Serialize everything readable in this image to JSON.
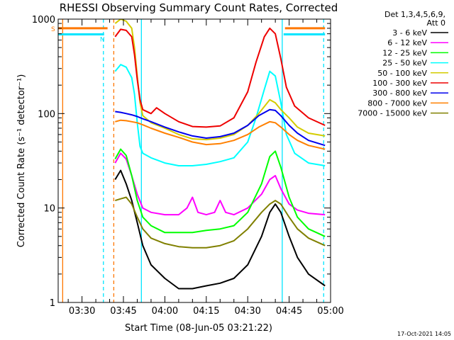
{
  "chart_data": {
    "type": "line",
    "title": "RHESSI Observing Summary Count Rates, Corrected",
    "xlabel": "Start Time (08-Jun-05 03:21:22)",
    "ylabel": "Corrected Count Rate (s⁻¹ detector⁻¹)",
    "y_scale": "log",
    "ylim": [
      1,
      1000
    ],
    "xlim": [
      "03:21:22",
      "05:00:00"
    ],
    "x_ticks": [
      "03:30",
      "03:45",
      "04:00",
      "04:15",
      "04:30",
      "04:45",
      "05:00"
    ],
    "y_ticks": [
      "1",
      "10",
      "100",
      "1000"
    ],
    "legend_header": [
      "Det 1,3,4,5,6,9,",
      "Att 0"
    ],
    "legend_position": "right",
    "footer": "17-Oct-2021 14:05",
    "state_labels": {
      "s": "S",
      "n": "N"
    },
    "state_bars": [
      {
        "name": "S",
        "color": "#ff7700",
        "level": 800,
        "segments": [
          [
            "03:21:22",
            "03:39:15"
          ],
          [
            "04:43:30",
            "04:58:00"
          ]
        ]
      },
      {
        "name": "N",
        "color": "#00e5ff",
        "level": 690,
        "segments": [
          [
            "03:21:22",
            "03:38:00"
          ],
          [
            "04:43:00",
            "04:58:00"
          ]
        ]
      }
    ],
    "vertical_markers": [
      {
        "time": "03:23:00",
        "color": "#ff7700",
        "style": "solid"
      },
      {
        "time": "03:37:45",
        "color": "#00e5ff",
        "style": "dashed"
      },
      {
        "time": "03:41:30",
        "color": "#ff7700",
        "style": "dashed"
      },
      {
        "time": "03:51:30",
        "color": "#00e5ff",
        "style": "solid"
      },
      {
        "time": "04:42:30",
        "color": "#00e5ff",
        "style": "solid"
      },
      {
        "time": "04:57:30",
        "color": "#00e5ff",
        "style": "dashed"
      }
    ],
    "series": [
      {
        "name": "3 - 6 keV",
        "color": "#000000",
        "points": [
          [
            "03:42",
            20
          ],
          [
            "03:44",
            25
          ],
          [
            "03:46",
            18
          ],
          [
            "03:48",
            12
          ],
          [
            "03:50",
            7
          ],
          [
            "03:52",
            4
          ],
          [
            "03:55",
            2.5
          ],
          [
            "04:00",
            1.8
          ],
          [
            "04:05",
            1.4
          ],
          [
            "04:10",
            1.4
          ],
          [
            "04:15",
            1.5
          ],
          [
            "04:20",
            1.6
          ],
          [
            "04:25",
            1.8
          ],
          [
            "04:30",
            2.5
          ],
          [
            "04:35",
            5
          ],
          [
            "04:38",
            9
          ],
          [
            "04:40",
            11
          ],
          [
            "04:42",
            9
          ],
          [
            "04:45",
            5
          ],
          [
            "04:48",
            3
          ],
          [
            "04:52",
            2
          ],
          [
            "04:58",
            1.5
          ]
        ]
      },
      {
        "name": "6 - 12 keV",
        "color": "#ff00ff",
        "points": [
          [
            "03:42",
            30
          ],
          [
            "03:44",
            38
          ],
          [
            "03:46",
            33
          ],
          [
            "03:48",
            22
          ],
          [
            "03:50",
            14
          ],
          [
            "03:52",
            10
          ],
          [
            "03:55",
            9
          ],
          [
            "04:00",
            8.5
          ],
          [
            "04:05",
            8.5
          ],
          [
            "04:08",
            10
          ],
          [
            "04:10",
            13
          ],
          [
            "04:12",
            9
          ],
          [
            "04:15",
            8.5
          ],
          [
            "04:18",
            9
          ],
          [
            "04:20",
            12
          ],
          [
            "04:22",
            9
          ],
          [
            "04:25",
            8.5
          ],
          [
            "04:30",
            10
          ],
          [
            "04:35",
            14
          ],
          [
            "04:38",
            20
          ],
          [
            "04:40",
            22
          ],
          [
            "04:42",
            16
          ],
          [
            "04:45",
            11
          ],
          [
            "04:48",
            9.5
          ],
          [
            "04:52",
            8.8
          ],
          [
            "04:58",
            8.5
          ]
        ]
      },
      {
        "name": "12 - 25 keV",
        "color": "#00ff00",
        "points": [
          [
            "03:42",
            33
          ],
          [
            "03:44",
            42
          ],
          [
            "03:46",
            36
          ],
          [
            "03:48",
            22
          ],
          [
            "03:50",
            12
          ],
          [
            "03:52",
            8
          ],
          [
            "03:55",
            6.5
          ],
          [
            "04:00",
            5.5
          ],
          [
            "04:05",
            5.5
          ],
          [
            "04:10",
            5.5
          ],
          [
            "04:15",
            5.8
          ],
          [
            "04:20",
            6
          ],
          [
            "04:25",
            6.5
          ],
          [
            "04:30",
            9
          ],
          [
            "04:35",
            18
          ],
          [
            "04:38",
            35
          ],
          [
            "04:40",
            40
          ],
          [
            "04:42",
            27
          ],
          [
            "04:45",
            13
          ],
          [
            "04:48",
            8
          ],
          [
            "04:52",
            6
          ],
          [
            "04:58",
            5
          ]
        ]
      },
      {
        "name": "25 - 50 keV",
        "color": "#00ffff",
        "points": [
          [
            "03:42",
            280
          ],
          [
            "03:44",
            330
          ],
          [
            "03:46",
            310
          ],
          [
            "03:48",
            240
          ],
          [
            "03:49",
            160
          ],
          [
            "03:50",
            80
          ],
          [
            "03:51",
            45
          ],
          [
            "03:52",
            38
          ],
          [
            "03:55",
            34
          ],
          [
            "04:00",
            30
          ],
          [
            "04:05",
            28
          ],
          [
            "04:10",
            28
          ],
          [
            "04:15",
            29
          ],
          [
            "04:20",
            31
          ],
          [
            "04:25",
            34
          ],
          [
            "04:30",
            50
          ],
          [
            "04:33",
            90
          ],
          [
            "04:36",
            180
          ],
          [
            "04:38",
            280
          ],
          [
            "04:40",
            250
          ],
          [
            "04:42",
            130
          ],
          [
            "04:44",
            60
          ],
          [
            "04:47",
            38
          ],
          [
            "04:52",
            30
          ],
          [
            "04:58",
            28
          ]
        ]
      },
      {
        "name": "50 - 100 keV",
        "color": "#d4cc00",
        "points": [
          [
            "03:42",
            900
          ],
          [
            "03:44",
            1000
          ],
          [
            "03:46",
            950
          ],
          [
            "03:48",
            800
          ],
          [
            "03:49",
            500
          ],
          [
            "03:50",
            250
          ],
          [
            "03:51",
            130
          ],
          [
            "03:52",
            95
          ],
          [
            "03:55",
            80
          ],
          [
            "04:00",
            70
          ],
          [
            "04:05",
            60
          ],
          [
            "04:10",
            54
          ],
          [
            "04:15",
            53
          ],
          [
            "04:20",
            55
          ],
          [
            "04:25",
            60
          ],
          [
            "04:30",
            75
          ],
          [
            "04:34",
            100
          ],
          [
            "04:38",
            140
          ],
          [
            "04:40",
            130
          ],
          [
            "04:42",
            110
          ],
          [
            "04:45",
            90
          ],
          [
            "04:48",
            72
          ],
          [
            "04:52",
            62
          ],
          [
            "04:58",
            58
          ]
        ]
      },
      {
        "name": "100 - 300 keV",
        "color": "#ee0000",
        "points": [
          [
            "03:42",
            650
          ],
          [
            "03:44",
            780
          ],
          [
            "03:46",
            760
          ],
          [
            "03:48",
            650
          ],
          [
            "03:49",
            420
          ],
          [
            "03:50",
            230
          ],
          [
            "03:51",
            140
          ],
          [
            "03:52",
            110
          ],
          [
            "03:55",
            100
          ],
          [
            "03:57",
            115
          ],
          [
            "04:00",
            100
          ],
          [
            "04:05",
            82
          ],
          [
            "04:10",
            73
          ],
          [
            "04:15",
            72
          ],
          [
            "04:20",
            74
          ],
          [
            "04:25",
            90
          ],
          [
            "04:30",
            170
          ],
          [
            "04:33",
            350
          ],
          [
            "04:36",
            650
          ],
          [
            "04:38",
            800
          ],
          [
            "04:40",
            700
          ],
          [
            "04:42",
            380
          ],
          [
            "04:44",
            190
          ],
          [
            "04:47",
            120
          ],
          [
            "04:52",
            90
          ],
          [
            "04:58",
            75
          ]
        ]
      },
      {
        "name": "300 - 800 keV",
        "color": "#0000ee",
        "points": [
          [
            "03:42",
            105
          ],
          [
            "03:44",
            103
          ],
          [
            "03:46",
            100
          ],
          [
            "03:48",
            97
          ],
          [
            "03:50",
            93
          ],
          [
            "03:52",
            88
          ],
          [
            "03:55",
            82
          ],
          [
            "04:00",
            72
          ],
          [
            "04:05",
            64
          ],
          [
            "04:10",
            58
          ],
          [
            "04:15",
            55
          ],
          [
            "04:20",
            57
          ],
          [
            "04:25",
            62
          ],
          [
            "04:30",
            75
          ],
          [
            "04:34",
            95
          ],
          [
            "04:38",
            110
          ],
          [
            "04:40",
            108
          ],
          [
            "04:42",
            95
          ],
          [
            "04:45",
            75
          ],
          [
            "04:48",
            62
          ],
          [
            "04:52",
            52
          ],
          [
            "04:58",
            46
          ]
        ]
      },
      {
        "name": "800 - 7000 keV",
        "color": "#ff8000",
        "points": [
          [
            "03:42",
            82
          ],
          [
            "03:44",
            85
          ],
          [
            "03:46",
            84
          ],
          [
            "03:48",
            82
          ],
          [
            "03:50",
            80
          ],
          [
            "03:52",
            76
          ],
          [
            "03:55",
            70
          ],
          [
            "04:00",
            62
          ],
          [
            "04:05",
            56
          ],
          [
            "04:10",
            50
          ],
          [
            "04:15",
            47
          ],
          [
            "04:20",
            48
          ],
          [
            "04:25",
            52
          ],
          [
            "04:30",
            60
          ],
          [
            "04:34",
            72
          ],
          [
            "04:38",
            82
          ],
          [
            "04:40",
            80
          ],
          [
            "04:42",
            72
          ],
          [
            "04:45",
            60
          ],
          [
            "04:48",
            52
          ],
          [
            "04:52",
            46
          ],
          [
            "04:58",
            42
          ]
        ]
      },
      {
        "name": "7000 - 15000 keV",
        "color": "#808000",
        "points": [
          [
            "03:42",
            12
          ],
          [
            "03:44",
            12.5
          ],
          [
            "03:46",
            13
          ],
          [
            "03:48",
            11
          ],
          [
            "03:50",
            8
          ],
          [
            "03:52",
            6
          ],
          [
            "03:55",
            4.8
          ],
          [
            "04:00",
            4.2
          ],
          [
            "04:05",
            3.9
          ],
          [
            "04:10",
            3.8
          ],
          [
            "04:15",
            3.8
          ],
          [
            "04:20",
            4
          ],
          [
            "04:25",
            4.5
          ],
          [
            "04:30",
            6
          ],
          [
            "04:35",
            9
          ],
          [
            "04:38",
            11
          ],
          [
            "04:40",
            12
          ],
          [
            "04:42",
            11
          ],
          [
            "04:45",
            8
          ],
          [
            "04:48",
            6
          ],
          [
            "04:52",
            4.8
          ],
          [
            "04:58",
            4
          ]
        ]
      }
    ]
  }
}
